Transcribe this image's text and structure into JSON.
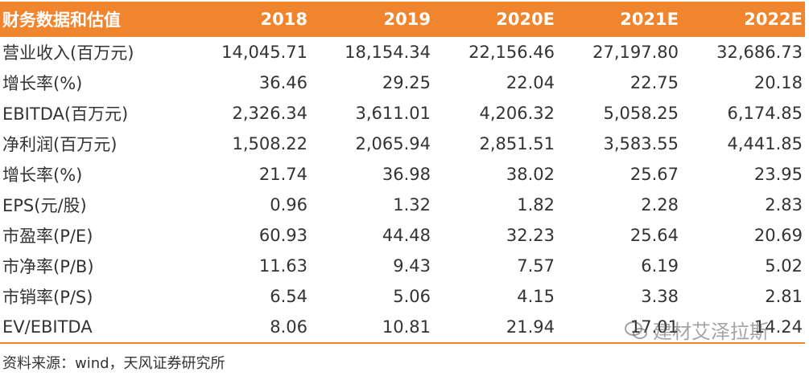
{
  "table": {
    "header": [
      "财务数据和估值",
      "2018",
      "2019",
      "2020E",
      "2021E",
      "2022E"
    ],
    "rows": [
      [
        "营业收入(百万元)",
        "14,045.71",
        "18,154.34",
        "22,156.46",
        "27,197.80",
        "32,686.73"
      ],
      [
        "增长率(%)",
        "36.46",
        "29.25",
        "22.04",
        "22.75",
        "20.18"
      ],
      [
        "EBITDA(百万元)",
        "2,326.34",
        "3,611.01",
        "4,206.32",
        "5,058.25",
        "6,174.85"
      ],
      [
        "净利润(百万元)",
        "1,508.22",
        "2,065.94",
        "2,851.51",
        "3,583.55",
        "4,441.85"
      ],
      [
        "增长率(%)",
        "21.74",
        "36.98",
        "38.02",
        "25.67",
        "23.95"
      ],
      [
        "EPS(元/股)",
        "0.96",
        "1.32",
        "1.82",
        "2.28",
        "2.83"
      ],
      [
        "市盈率(P/E)",
        "60.93",
        "44.48",
        "32.23",
        "25.64",
        "20.69"
      ],
      [
        "市净率(P/B)",
        "11.63",
        "9.43",
        "7.57",
        "6.19",
        "5.02"
      ],
      [
        "市销率(P/S)",
        "6.54",
        "5.06",
        "4.15",
        "3.38",
        "2.81"
      ],
      [
        "EV/EBITDA",
        "8.06",
        "10.81",
        "21.94",
        "17.01",
        "14.24"
      ]
    ]
  },
  "source": "资料来源：wind，天风证券研究所",
  "watermark": "建材艾泽拉斯"
}
